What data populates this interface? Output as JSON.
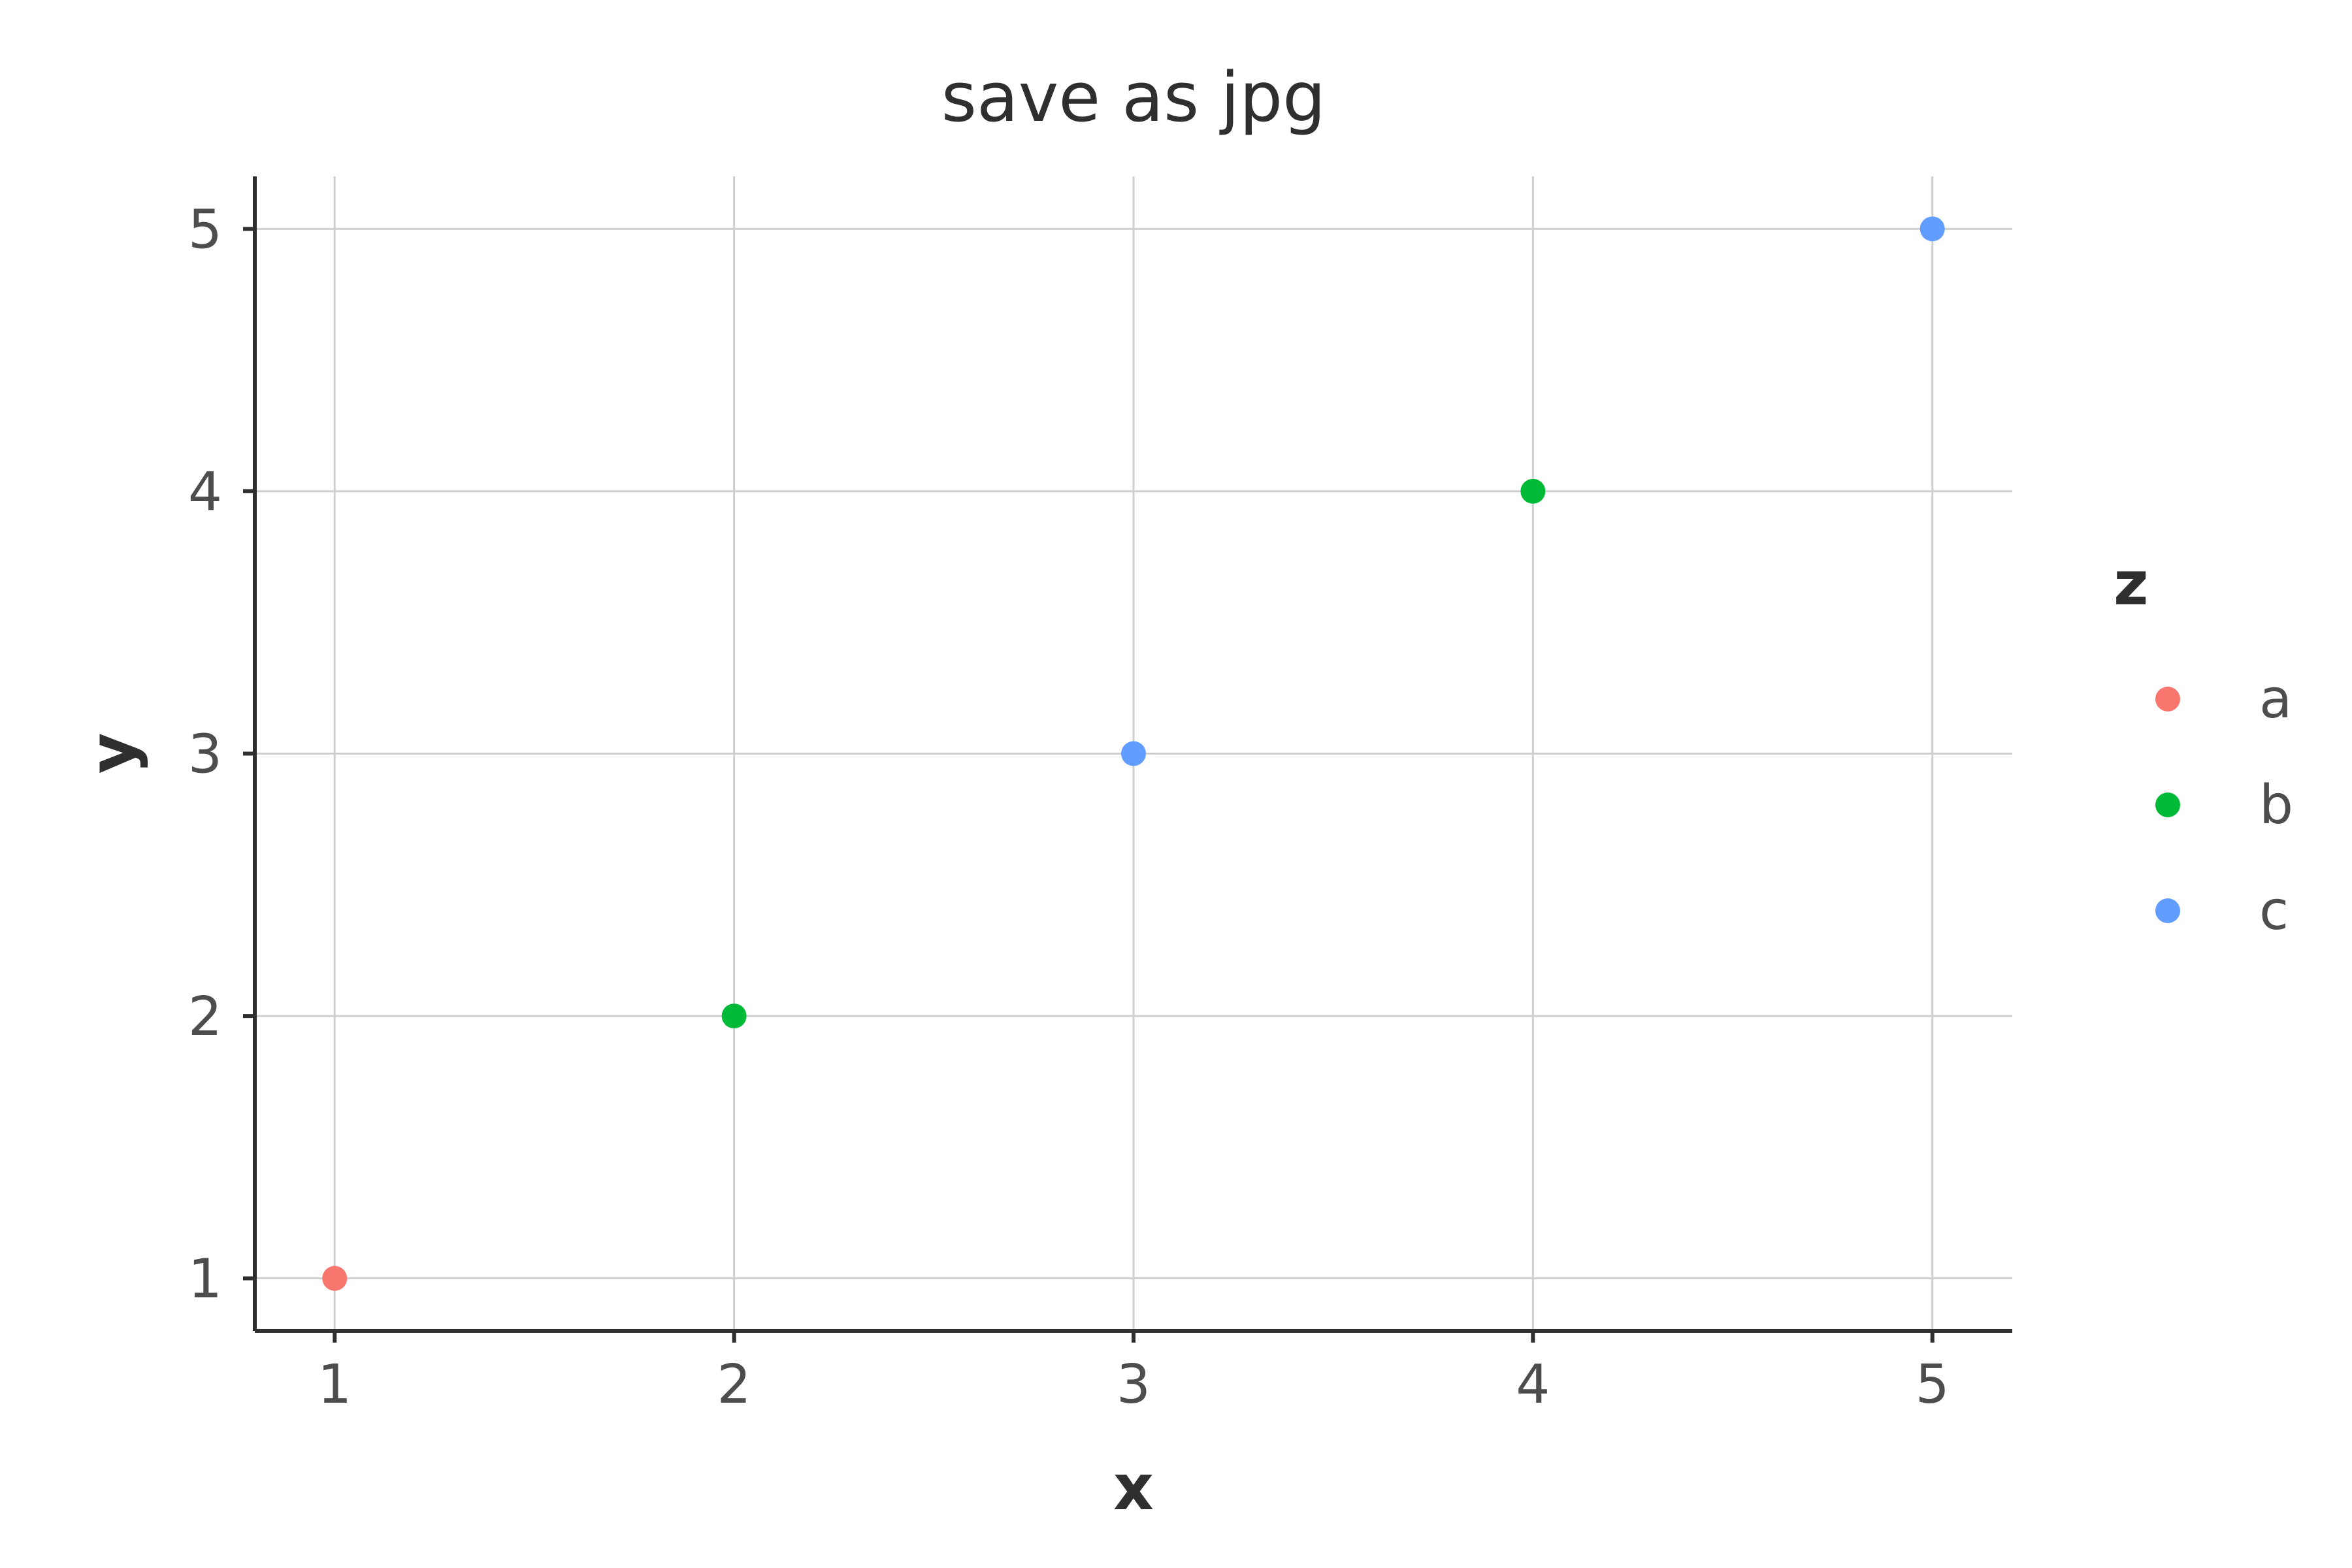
{
  "chart_data": {
    "type": "scatter",
    "title": "save as jpg",
    "xlabel": "x",
    "ylabel": "y",
    "xlim": [
      0.8,
      5.2
    ],
    "ylim": [
      0.8,
      5.2
    ],
    "x_ticks": [
      1,
      2,
      3,
      4,
      5
    ],
    "y_ticks": [
      1,
      2,
      3,
      4,
      5
    ],
    "grid": true,
    "legend": {
      "title": "z",
      "placement": "right",
      "entries": [
        {
          "label": "a",
          "color": "#F8766D"
        },
        {
          "label": "b",
          "color": "#00BA38"
        },
        {
          "label": "c",
          "color": "#619CFF"
        }
      ]
    },
    "points": [
      {
        "x": 1,
        "y": 1,
        "z": "a"
      },
      {
        "x": 2,
        "y": 2,
        "z": "b"
      },
      {
        "x": 3,
        "y": 3,
        "z": "c"
      },
      {
        "x": 4,
        "y": 4,
        "z": "b"
      },
      {
        "x": 5,
        "y": 5,
        "z": "c"
      }
    ]
  }
}
